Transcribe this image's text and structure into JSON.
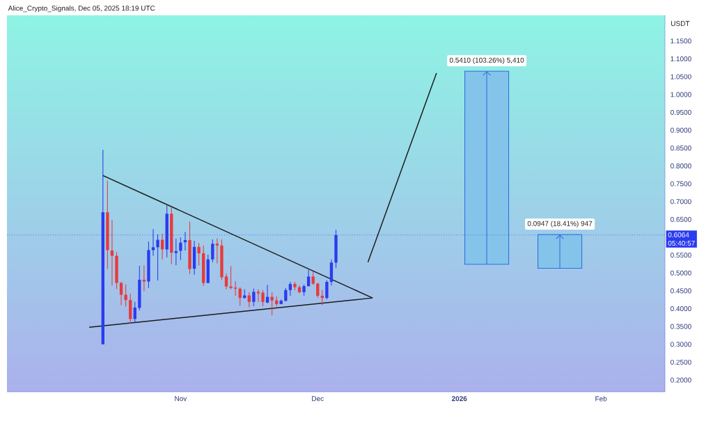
{
  "chart_data": {
    "type": "candlestick",
    "title": "Alice_Crypto_Signals, Dec 05, 2025 18:19 UTC",
    "ylabel": "USDT",
    "x": [
      "2025-10-15",
      "2025-10-16",
      "2025-10-17",
      "2025-10-18",
      "2025-10-19",
      "2025-10-20",
      "2025-10-21",
      "2025-10-22",
      "2025-10-23",
      "2025-10-24",
      "2025-10-25",
      "2025-10-26",
      "2025-10-27",
      "2025-10-28",
      "2025-10-29",
      "2025-10-30",
      "2025-10-31",
      "2025-11-01",
      "2025-11-02",
      "2025-11-03",
      "2025-11-04",
      "2025-11-05",
      "2025-11-06",
      "2025-11-07",
      "2025-11-08",
      "2025-11-09",
      "2025-11-10",
      "2025-11-11",
      "2025-11-12",
      "2025-11-13",
      "2025-11-14",
      "2025-11-15",
      "2025-11-16",
      "2025-11-17",
      "2025-11-18",
      "2025-11-19",
      "2025-11-20",
      "2025-11-21",
      "2025-11-22",
      "2025-11-23",
      "2025-11-24",
      "2025-11-25",
      "2025-11-26",
      "2025-11-27",
      "2025-11-28",
      "2025-11-29",
      "2025-11-30",
      "2025-12-01",
      "2025-12-02",
      "2025-12-03",
      "2025-12-04",
      "2025-12-05"
    ],
    "ohlc": [
      [
        0.3,
        0.845,
        0.3,
        0.67
      ],
      [
        0.67,
        0.759,
        0.511,
        0.564
      ],
      [
        0.563,
        0.648,
        0.465,
        0.548
      ],
      [
        0.548,
        0.559,
        0.455,
        0.472
      ],
      [
        0.472,
        0.475,
        0.41,
        0.439
      ],
      [
        0.439,
        0.468,
        0.406,
        0.424
      ],
      [
        0.424,
        0.442,
        0.358,
        0.371
      ],
      [
        0.371,
        0.419,
        0.361,
        0.403
      ],
      [
        0.402,
        0.52,
        0.395,
        0.481
      ],
      [
        0.481,
        0.521,
        0.449,
        0.476
      ],
      [
        0.476,
        0.588,
        0.458,
        0.564
      ],
      [
        0.564,
        0.623,
        0.548,
        0.572
      ],
      [
        0.572,
        0.608,
        0.479,
        0.593
      ],
      [
        0.593,
        0.61,
        0.538,
        0.566
      ],
      [
        0.566,
        0.689,
        0.544,
        0.666
      ],
      [
        0.666,
        0.685,
        0.525,
        0.557
      ],
      [
        0.556,
        0.596,
        0.522,
        0.561
      ],
      [
        0.562,
        0.6,
        0.536,
        0.585
      ],
      [
        0.586,
        0.615,
        0.563,
        0.592
      ],
      [
        0.592,
        0.644,
        0.497,
        0.511
      ],
      [
        0.512,
        0.59,
        0.495,
        0.573
      ],
      [
        0.573,
        0.584,
        0.521,
        0.555
      ],
      [
        0.555,
        0.577,
        0.464,
        0.472
      ],
      [
        0.472,
        0.551,
        0.471,
        0.538
      ],
      [
        0.538,
        0.594,
        0.53,
        0.582
      ],
      [
        0.582,
        0.597,
        0.527,
        0.577
      ],
      [
        0.577,
        0.594,
        0.48,
        0.488
      ],
      [
        0.49,
        0.498,
        0.454,
        0.462
      ],
      [
        0.462,
        0.519,
        0.454,
        0.458
      ],
      [
        0.459,
        0.477,
        0.436,
        0.456
      ],
      [
        0.456,
        0.46,
        0.408,
        0.43
      ],
      [
        0.43,
        0.454,
        0.428,
        0.437
      ],
      [
        0.437,
        0.446,
        0.404,
        0.419
      ],
      [
        0.419,
        0.456,
        0.407,
        0.447
      ],
      [
        0.447,
        0.454,
        0.419,
        0.443
      ],
      [
        0.445,
        0.452,
        0.407,
        0.419
      ],
      [
        0.417,
        0.467,
        0.415,
        0.433
      ],
      [
        0.433,
        0.446,
        0.381,
        0.423
      ],
      [
        0.423,
        0.434,
        0.407,
        0.413
      ],
      [
        0.413,
        0.426,
        0.412,
        0.422
      ],
      [
        0.422,
        0.458,
        0.42,
        0.452
      ],
      [
        0.452,
        0.475,
        0.436,
        0.469
      ],
      [
        0.469,
        0.475,
        0.451,
        0.46
      ],
      [
        0.46,
        0.465,
        0.443,
        0.446
      ],
      [
        0.446,
        0.468,
        0.436,
        0.463
      ],
      [
        0.463,
        0.508,
        0.462,
        0.49
      ],
      [
        0.49,
        0.504,
        0.467,
        0.47
      ],
      [
        0.47,
        0.472,
        0.43,
        0.436
      ],
      [
        0.436,
        0.452,
        0.41,
        0.43
      ],
      [
        0.43,
        0.48,
        0.426,
        0.475
      ],
      [
        0.475,
        0.538,
        0.465,
        0.529
      ],
      [
        0.529,
        0.621,
        0.514,
        0.6064
      ]
    ],
    "colors": [
      "#2a3bf0",
      "#e83a3a",
      "#e83a3a",
      "#e83a3a",
      "#e83a3a",
      "#e83a3a",
      "#e83a3a",
      "#2a3bf0",
      "#2a3bf0",
      "#e83a3a",
      "#2a3bf0",
      "#2a3bf0",
      "#2a3bf0",
      "#e83a3a",
      "#2a3bf0",
      "#e83a3a",
      "#2a3bf0",
      "#2a3bf0",
      "#2a3bf0",
      "#e83a3a",
      "#2a3bf0",
      "#e83a3a",
      "#e83a3a",
      "#2a3bf0",
      "#2a3bf0",
      "#e83a3a",
      "#e83a3a",
      "#e83a3a",
      "#e83a3a",
      "#e83a3a",
      "#e83a3a",
      "#2a3bf0",
      "#e83a3a",
      "#2a3bf0",
      "#e83a3a",
      "#e83a3a",
      "#2a3bf0",
      "#e83a3a",
      "#e83a3a",
      "#2a3bf0",
      "#2a3bf0",
      "#2a3bf0",
      "#e83a3a",
      "#e83a3a",
      "#2a3bf0",
      "#2a3bf0",
      "#e83a3a",
      "#e83a3a",
      "#e83a3a",
      "#2a3bf0",
      "#2a3bf0",
      "#2a3bf0"
    ],
    "series": [
      {
        "type": "line",
        "color": "#1a1a1a",
        "x": [
          "2025-10-15",
          "2025-12-13"
        ],
        "values": [
          0.773,
          0.43
        ]
      },
      {
        "type": "line",
        "color": "#1a1a1a",
        "x": [
          "2025-10-12",
          "2025-12-13"
        ],
        "values": [
          0.348,
          0.43
        ]
      },
      {
        "type": "line",
        "color": "#1a1a1a",
        "x": [
          "2025-12-12",
          "2025-12-27"
        ],
        "values": [
          0.53,
          1.06
        ]
      },
      {
        "type": "bar",
        "color": "#84c4ea",
        "x": [
          "2026-01-07",
          "2026-01-23"
        ],
        "base": [
          0.5245,
          0.513
        ],
        "values": [
          0.541,
          0.0947
        ],
        "value_labels": [
          "0.5410 (103.26%) 5,410",
          "0.0947 (18.41%) 947"
        ]
      }
    ],
    "ref_lines": [
      {
        "axis": "y",
        "value": 0.6064,
        "label": "0.6064",
        "color": "#2a3bf0",
        "line_style": "dotted"
      }
    ],
    "annotations": [
      "05:40:57"
    ],
    "xlim": [
      "2025-09-24",
      "2026-02-15"
    ],
    "xticks": [
      {
        "value": "2025-11-01",
        "label": "Nov"
      },
      {
        "value": "2025-12-01",
        "label": "Dec"
      },
      {
        "value": "2026-01-01",
        "label": "**2026**"
      },
      {
        "value": "2026-02-01",
        "label": "Feb"
      }
    ],
    "ylim": [
      0.167,
      1.222
    ],
    "yticks": [
      {
        "value": 0.2,
        "label": "0.2000"
      },
      {
        "value": 0.25,
        "label": "0.2500"
      },
      {
        "value": 0.3,
        "label": "0.3000"
      },
      {
        "value": 0.35,
        "label": "0.3500"
      },
      {
        "value": 0.4,
        "label": "0.4000"
      },
      {
        "value": 0.45,
        "label": "0.4500"
      },
      {
        "value": 0.5,
        "label": "0.5000"
      },
      {
        "value": 0.55,
        "label": "0.5500"
      },
      {
        "value": 0.65,
        "label": "0.6500"
      },
      {
        "value": 0.7,
        "label": "0.7000"
      },
      {
        "value": 0.75,
        "label": "0.7500"
      },
      {
        "value": 0.8,
        "label": "0.8000"
      },
      {
        "value": 0.85,
        "label": "0.8500"
      },
      {
        "value": 0.9,
        "label": "0.9000"
      },
      {
        "value": 0.95,
        "label": "0.9500"
      },
      {
        "value": 1.0,
        "label": "1.0000"
      },
      {
        "value": 1.05,
        "label": "1.0500"
      },
      {
        "value": 1.1,
        "label": "1.1000"
      },
      {
        "value": 1.15,
        "label": "1.1500"
      }
    ]
  }
}
